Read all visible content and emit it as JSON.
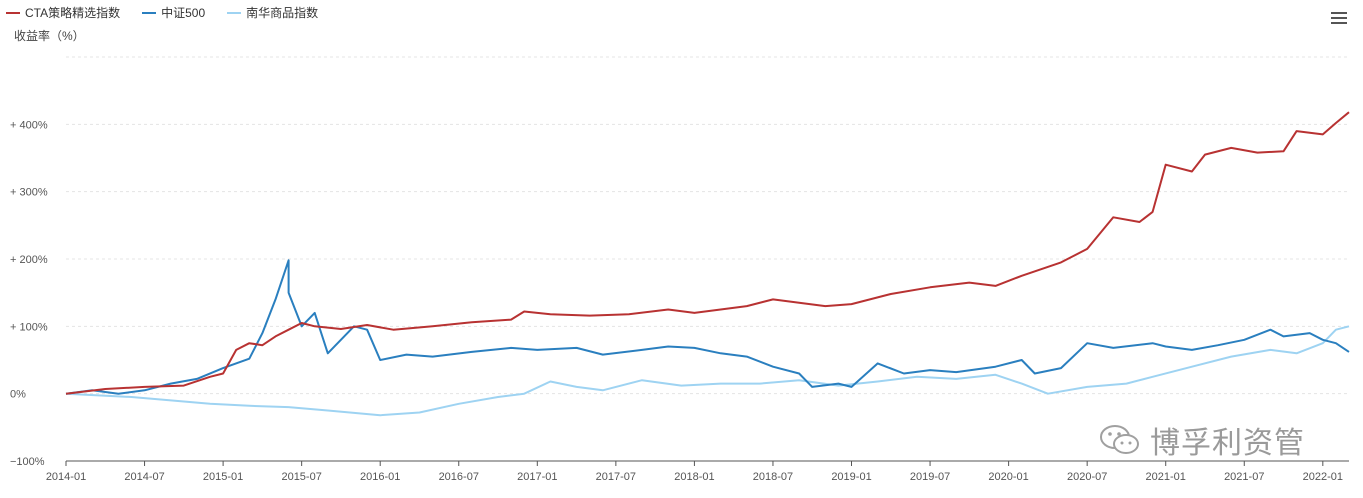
{
  "legend": [
    {
      "name": "CTA策略精选指数",
      "color": "#b83232"
    },
    {
      "name": "中证500",
      "color": "#2a7fbf"
    },
    {
      "name": "南华商品指数",
      "color": "#9ed3f2"
    }
  ],
  "watermark": "博孚利资管",
  "chart_data": {
    "type": "line",
    "ylabel": "收益率（%）",
    "ylim": [
      -100,
      500
    ],
    "yticks": [
      {
        "value": 400,
        "label": "+ 400%"
      },
      {
        "value": 300,
        "label": "+ 300%"
      },
      {
        "value": 200,
        "label": "+ 200%"
      },
      {
        "value": 100,
        "label": "+ 100%"
      },
      {
        "value": 0,
        "label": "0%"
      },
      {
        "value": -100,
        "label": "−100%"
      }
    ],
    "xlim": [
      "2014-01",
      "2022-03"
    ],
    "xticks": [
      "2014-01",
      "2014-07",
      "2015-01",
      "2015-07",
      "2016-01",
      "2016-07",
      "2017-01",
      "2017-07",
      "2018-01",
      "2018-07",
      "2019-01",
      "2019-07",
      "2020-01",
      "2020-07",
      "2021-01",
      "2021-07",
      "2022-01"
    ],
    "grid": true,
    "series": [
      {
        "name": "CTA策略精选指数",
        "color": "#b83232",
        "points": [
          [
            "2014-01",
            0
          ],
          [
            "2014-04",
            7
          ],
          [
            "2014-07",
            10
          ],
          [
            "2014-10",
            12
          ],
          [
            "2014-12",
            25
          ],
          [
            "2015-01",
            30
          ],
          [
            "2015-02",
            65
          ],
          [
            "2015-03",
            75
          ],
          [
            "2015-04",
            72
          ],
          [
            "2015-05",
            85
          ],
          [
            "2015-06",
            95
          ],
          [
            "2015-07",
            105
          ],
          [
            "2015-08",
            100
          ],
          [
            "2015-10",
            96
          ],
          [
            "2015-12",
            102
          ],
          [
            "2016-02",
            95
          ],
          [
            "2016-05",
            100
          ],
          [
            "2016-08",
            106
          ],
          [
            "2016-11",
            110
          ],
          [
            "2016-12",
            122
          ],
          [
            "2017-02",
            118
          ],
          [
            "2017-05",
            116
          ],
          [
            "2017-08",
            118
          ],
          [
            "2017-11",
            125
          ],
          [
            "2018-01",
            120
          ],
          [
            "2018-03",
            125
          ],
          [
            "2018-05",
            130
          ],
          [
            "2018-07",
            140
          ],
          [
            "2018-09",
            135
          ],
          [
            "2018-11",
            130
          ],
          [
            "2019-01",
            133
          ],
          [
            "2019-04",
            148
          ],
          [
            "2019-07",
            158
          ],
          [
            "2019-10",
            165
          ],
          [
            "2019-12",
            160
          ],
          [
            "2020-02",
            175
          ],
          [
            "2020-05",
            195
          ],
          [
            "2020-07",
            215
          ],
          [
            "2020-09",
            262
          ],
          [
            "2020-11",
            255
          ],
          [
            "2020-12",
            270
          ],
          [
            "2021-01",
            340
          ],
          [
            "2021-03",
            330
          ],
          [
            "2021-04",
            355
          ],
          [
            "2021-06",
            365
          ],
          [
            "2021-08",
            358
          ],
          [
            "2021-10",
            360
          ],
          [
            "2021-11",
            390
          ],
          [
            "2022-01",
            385
          ],
          [
            "2022-02",
            402
          ],
          [
            "2022-03",
            418
          ]
        ]
      },
      {
        "name": "中证500",
        "color": "#2a7fbf",
        "points": [
          [
            "2014-01",
            0
          ],
          [
            "2014-03",
            5
          ],
          [
            "2014-05",
            0
          ],
          [
            "2014-07",
            5
          ],
          [
            "2014-09",
            15
          ],
          [
            "2014-11",
            22
          ],
          [
            "2015-01",
            38
          ],
          [
            "2015-03",
            52
          ],
          [
            "2015-04",
            90
          ],
          [
            "2015-05",
            140
          ],
          [
            "2015-06",
            198
          ],
          [
            "2015-06",
            150
          ],
          [
            "2015-07",
            100
          ],
          [
            "2015-08",
            120
          ],
          [
            "2015-09",
            60
          ],
          [
            "2015-10",
            80
          ],
          [
            "2015-11",
            100
          ],
          [
            "2015-12",
            95
          ],
          [
            "2016-01",
            50
          ],
          [
            "2016-03",
            58
          ],
          [
            "2016-05",
            55
          ],
          [
            "2016-08",
            62
          ],
          [
            "2016-11",
            68
          ],
          [
            "2017-01",
            65
          ],
          [
            "2017-04",
            68
          ],
          [
            "2017-06",
            58
          ],
          [
            "2017-09",
            65
          ],
          [
            "2017-11",
            70
          ],
          [
            "2018-01",
            68
          ],
          [
            "2018-03",
            60
          ],
          [
            "2018-05",
            55
          ],
          [
            "2018-07",
            40
          ],
          [
            "2018-09",
            30
          ],
          [
            "2018-10",
            10
          ],
          [
            "2018-12",
            15
          ],
          [
            "2019-01",
            10
          ],
          [
            "2019-03",
            45
          ],
          [
            "2019-05",
            30
          ],
          [
            "2019-07",
            35
          ],
          [
            "2019-09",
            32
          ],
          [
            "2019-12",
            40
          ],
          [
            "2020-02",
            50
          ],
          [
            "2020-03",
            30
          ],
          [
            "2020-05",
            38
          ],
          [
            "2020-07",
            75
          ],
          [
            "2020-09",
            68
          ],
          [
            "2020-12",
            75
          ],
          [
            "2021-01",
            70
          ],
          [
            "2021-03",
            65
          ],
          [
            "2021-05",
            72
          ],
          [
            "2021-07",
            80
          ],
          [
            "2021-09",
            95
          ],
          [
            "2021-10",
            85
          ],
          [
            "2021-12",
            90
          ],
          [
            "2022-01",
            80
          ],
          [
            "2022-02",
            75
          ],
          [
            "2022-03",
            62
          ]
        ]
      },
      {
        "name": "南华商品指数",
        "color": "#9ed3f2",
        "points": [
          [
            "2014-01",
            0
          ],
          [
            "2014-06",
            -5
          ],
          [
            "2014-12",
            -15
          ],
          [
            "2015-03",
            -18
          ],
          [
            "2015-06",
            -20
          ],
          [
            "2015-09",
            -25
          ],
          [
            "2016-01",
            -32
          ],
          [
            "2016-04",
            -28
          ],
          [
            "2016-07",
            -15
          ],
          [
            "2016-10",
            -5
          ],
          [
            "2016-12",
            0
          ],
          [
            "2017-02",
            18
          ],
          [
            "2017-04",
            10
          ],
          [
            "2017-06",
            5
          ],
          [
            "2017-09",
            20
          ],
          [
            "2017-12",
            12
          ],
          [
            "2018-03",
            15
          ],
          [
            "2018-06",
            15
          ],
          [
            "2018-09",
            20
          ],
          [
            "2018-12",
            12
          ],
          [
            "2019-03",
            18
          ],
          [
            "2019-06",
            25
          ],
          [
            "2019-09",
            22
          ],
          [
            "2019-12",
            28
          ],
          [
            "2020-02",
            15
          ],
          [
            "2020-04",
            0
          ],
          [
            "2020-07",
            10
          ],
          [
            "2020-10",
            15
          ],
          [
            "2020-12",
            25
          ],
          [
            "2021-03",
            40
          ],
          [
            "2021-06",
            55
          ],
          [
            "2021-09",
            65
          ],
          [
            "2021-11",
            60
          ],
          [
            "2022-01",
            75
          ],
          [
            "2022-02",
            95
          ],
          [
            "2022-03",
            100
          ]
        ]
      }
    ]
  }
}
